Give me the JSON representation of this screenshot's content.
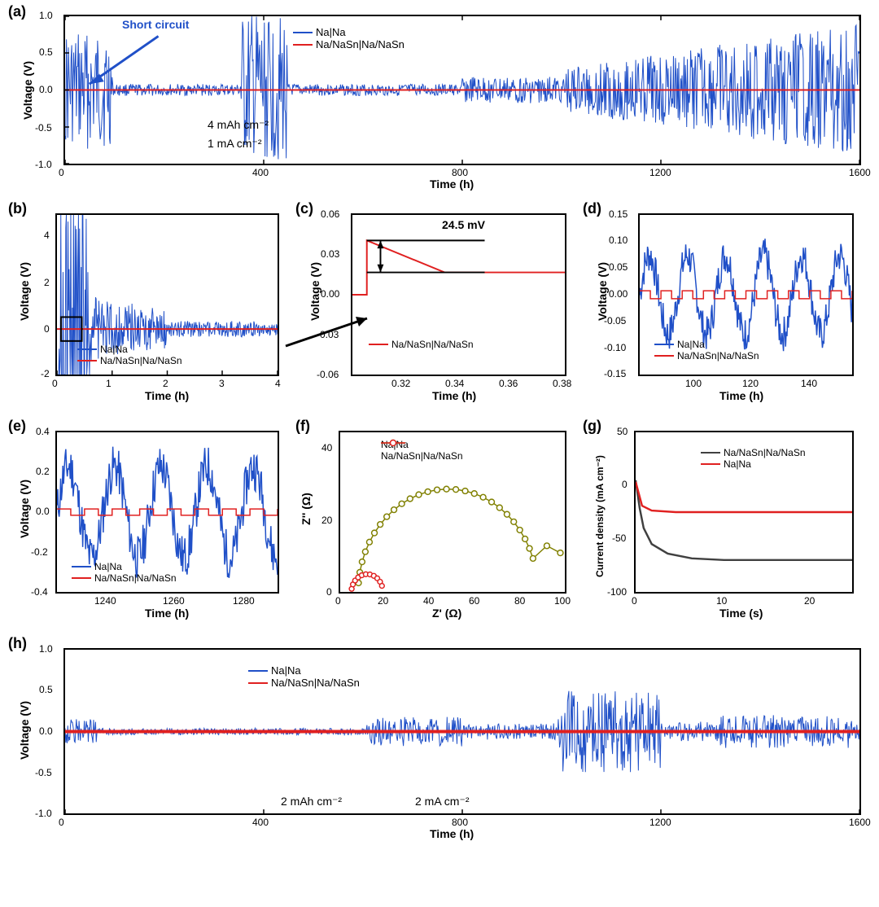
{
  "colors": {
    "blue": "#2050c8",
    "red": "#e02020",
    "olive": "#808000",
    "black": "#000000",
    "dark_gray": "#404040",
    "axis": "#000000",
    "bg": "#ffffff"
  },
  "panels": {
    "a": {
      "label": "(a)",
      "xlabel": "Time (h)",
      "ylabel": "Voltage (V)",
      "xlim": [
        0,
        1600
      ],
      "ylim": [
        -1.0,
        1.0
      ],
      "xticks": [
        0,
        400,
        800,
        1200,
        1600
      ],
      "yticks": [
        -1.0,
        -0.5,
        0.0,
        0.5,
        1.0
      ],
      "legend_items": [
        "Na|Na",
        "Na/NaSn|Na/NaSn"
      ],
      "legend_colors": [
        "#2050c8",
        "#e02020"
      ],
      "annotations": {
        "short_circuit": "Short circuit",
        "cap": "4 mAh cm⁻²",
        "rate": "1 mA cm⁻²"
      }
    },
    "b": {
      "label": "(b)",
      "xlabel": "Time (h)",
      "ylabel": "Voltage (V)",
      "xlim": [
        0,
        4
      ],
      "ylim": [
        -2,
        5
      ],
      "xticks": [
        0,
        1,
        2,
        3,
        4
      ],
      "yticks": [
        -2,
        0,
        2,
        4
      ],
      "legend_items": [
        "Na|Na",
        "Na/NaSn|Na/NaSn"
      ],
      "legend_colors": [
        "#2050c8",
        "#e02020"
      ]
    },
    "c": {
      "label": "(c)",
      "xlabel": "Time (h)",
      "ylabel": "Voltage (V)",
      "xlim": [
        0.3,
        0.38
      ],
      "ylim": [
        -0.06,
        0.06
      ],
      "xticks": [
        0.32,
        0.34,
        0.36,
        0.38
      ],
      "yticks": [
        -0.06,
        -0.03,
        0.0,
        0.03,
        0.06
      ],
      "legend_items": [
        "Na/NaSn|Na/NaSn"
      ],
      "legend_colors": [
        "#e02020"
      ],
      "annotation": "24.5 mV"
    },
    "d": {
      "label": "(d)",
      "xlabel": "Time (h)",
      "ylabel": "Voltage (V)",
      "xlim": [
        80,
        155
      ],
      "ylim": [
        -0.15,
        0.15
      ],
      "xticks": [
        100,
        120,
        140
      ],
      "yticks": [
        -0.15,
        -0.1,
        -0.05,
        0.0,
        0.05,
        0.1,
        0.15
      ],
      "legend_items": [
        "Na|Na",
        "Na/NaSn|Na/NaSn"
      ],
      "legend_colors": [
        "#2050c8",
        "#e02020"
      ]
    },
    "e": {
      "label": "(e)",
      "xlabel": "Time (h)",
      "ylabel": "Voltage (V)",
      "xlim": [
        1225,
        1290
      ],
      "ylim": [
        -0.4,
        0.4
      ],
      "xticks": [
        1240,
        1260,
        1280
      ],
      "yticks": [
        -0.4,
        -0.2,
        0.0,
        0.2,
        0.4
      ],
      "legend_items": [
        "Na|Na",
        "Na/NaSn|Na/NaSn"
      ],
      "legend_colors": [
        "#2050c8",
        "#e02020"
      ]
    },
    "f": {
      "label": "(f)",
      "xlabel": "Z' (Ω)",
      "ylabel": "Z'' (Ω)",
      "xlim": [
        0,
        100
      ],
      "ylim": [
        0,
        45
      ],
      "xticks": [
        0,
        20,
        40,
        60,
        80,
        100
      ],
      "yticks": [
        0,
        20,
        40
      ],
      "legend_items": [
        "Na|Na",
        "Na/NaSn|Na/NaSn"
      ],
      "legend_colors": [
        "#808000",
        "#e02020"
      ],
      "series_na": {
        "marker": "o",
        "color": "#808000"
      },
      "series_nasn": {
        "marker": "o",
        "color": "#e02020"
      }
    },
    "g": {
      "label": "(g)",
      "xlabel": "Time (s)",
      "ylabel": "Current density (mA cm⁻²)",
      "xlim": [
        0,
        25
      ],
      "ylim": [
        -100,
        50
      ],
      "xticks": [
        0,
        10,
        20
      ],
      "yticks": [
        -100,
        -50,
        0,
        50
      ],
      "legend_items": [
        "Na/NaSn|Na/NaSn",
        "Na|Na"
      ],
      "legend_colors": [
        "#404040",
        "#e02020"
      ]
    },
    "h": {
      "label": "(h)",
      "xlabel": "Time (h)",
      "ylabel": "Voltage  (V)",
      "xlim": [
        0,
        1600
      ],
      "ylim": [
        -1.0,
        1.0
      ],
      "xticks": [
        0,
        400,
        800,
        1200,
        1600
      ],
      "yticks": [
        -1.0,
        -0.5,
        0.0,
        0.5,
        1.0
      ],
      "legend_items": [
        "Na|Na",
        "Na/NaSn|Na/NaSn"
      ],
      "legend_colors": [
        "#2050c8",
        "#e02020"
      ],
      "annotations": {
        "cap": "2 mAh cm⁻²",
        "rate": "2 mA cm⁻²"
      }
    }
  }
}
